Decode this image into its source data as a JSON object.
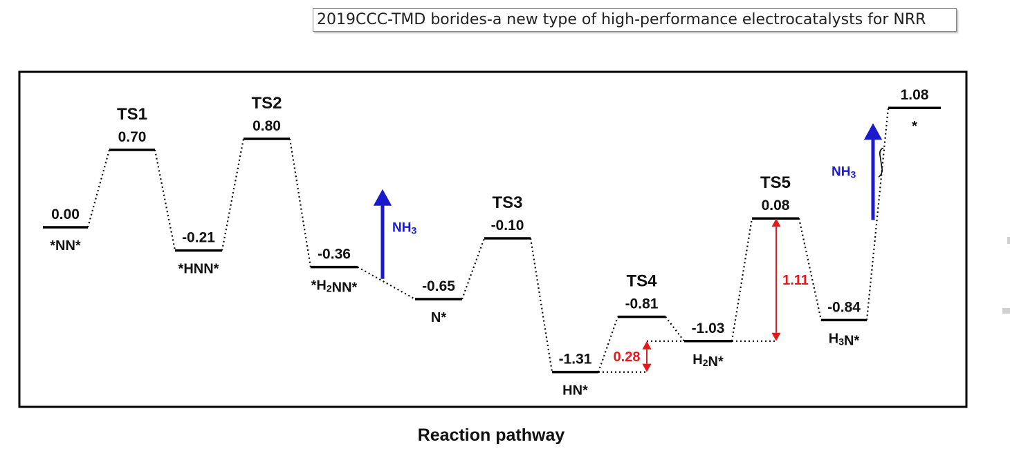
{
  "caption": "2019CCC-TMD borides-a new type of high-performance electrocatalysts for NRR",
  "chart_data": {
    "type": "energy-profile",
    "xlabel": "Reaction pathway",
    "ylabel": "",
    "states": [
      {
        "id": "s0",
        "value": 0.0,
        "label": "0.00",
        "species": "*NN*"
      },
      {
        "id": "ts1",
        "value": 0.7,
        "label": "0.70",
        "ts": "TS1"
      },
      {
        "id": "s1",
        "value": -0.21,
        "label": "-0.21",
        "species": "*HNN*"
      },
      {
        "id": "ts2",
        "value": 0.8,
        "label": "0.80",
        "ts": "TS2"
      },
      {
        "id": "s2",
        "value": -0.36,
        "label": "-0.36",
        "species": "*H₂NN*"
      },
      {
        "id": "s3",
        "value": -0.65,
        "label": "-0.65",
        "species": "N*"
      },
      {
        "id": "ts3",
        "value": -0.1,
        "label": "-0.10",
        "ts": "TS3"
      },
      {
        "id": "s4",
        "value": -1.31,
        "label": "-1.31",
        "species": "HN*"
      },
      {
        "id": "ts4",
        "value": -0.81,
        "label": "-0.81",
        "ts": "TS4"
      },
      {
        "id": "s5",
        "value": -1.03,
        "label": "-1.03",
        "species": "H₂N*"
      },
      {
        "id": "ts5",
        "value": 0.08,
        "label": "0.08",
        "ts": "TS5"
      },
      {
        "id": "s6",
        "value": -0.84,
        "label": "-0.84",
        "species": "H₃N*"
      },
      {
        "id": "s7",
        "value": 1.08,
        "label": "1.08",
        "species": "*"
      }
    ],
    "nh3_release": [
      {
        "after": "s2",
        "label": "NH₃"
      },
      {
        "after": "s6",
        "label": "NH₃"
      }
    ],
    "barriers": [
      {
        "value": 0.28,
        "label": "0.28",
        "from": -1.03,
        "to": -1.31,
        "color": "#e31a1c"
      },
      {
        "value": 1.11,
        "label": "1.11",
        "from": 0.08,
        "to": -1.03,
        "color": "#e31a1c"
      }
    ],
    "colors": {
      "levels": "#000000",
      "nh3_arrow": "#1a1acc",
      "barrier": "#e31a1c"
    }
  }
}
